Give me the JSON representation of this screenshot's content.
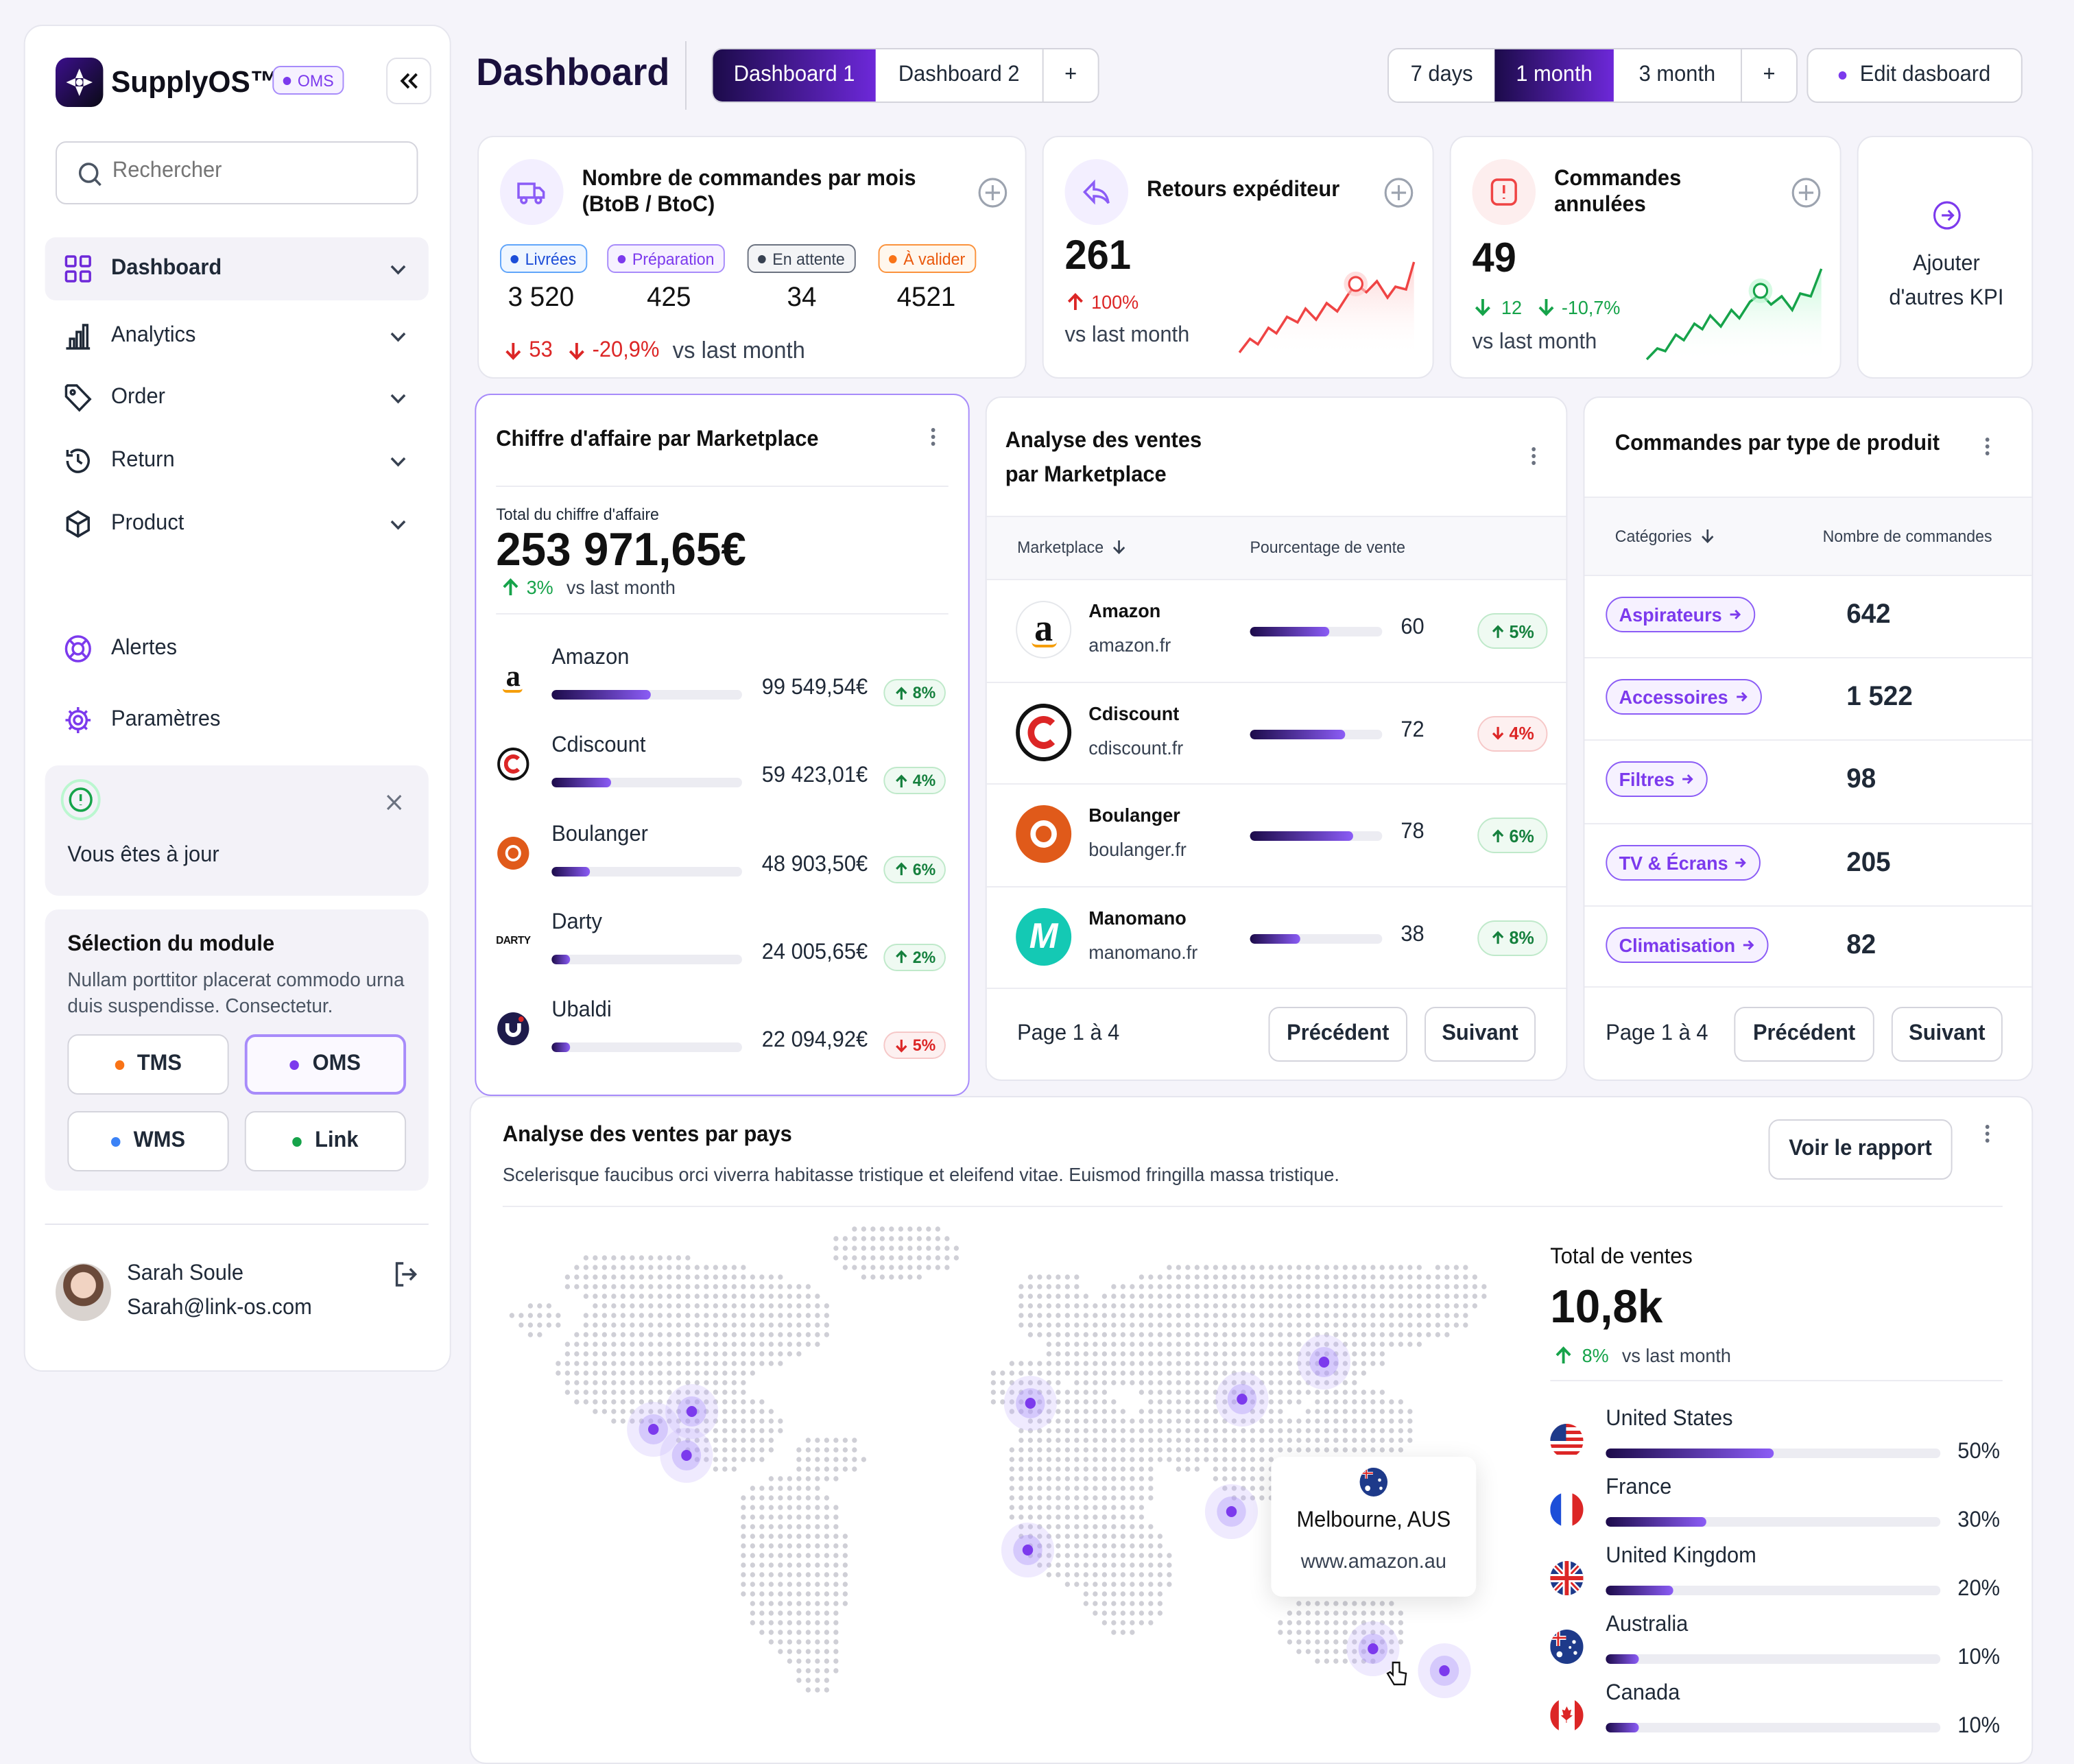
{
  "brand": {
    "name": "SupplyOS™",
    "badge": "OMS"
  },
  "sidebar": {
    "search_placeholder": "Rechercher",
    "items": [
      {
        "label": "Dashboard"
      },
      {
        "label": "Analytics"
      },
      {
        "label": "Order"
      },
      {
        "label": "Return"
      },
      {
        "label": "Product"
      }
    ],
    "alerts_label": "Alertes",
    "settings_label": "Paramètres",
    "notice": "Vous êtes à jour",
    "module": {
      "title": "Sélection du module",
      "desc": "Nullam porttitor placerat commodo urna duis suspendisse. Consectetur.",
      "options": [
        {
          "label": "TMS",
          "color": "#f97316"
        },
        {
          "label": "OMS",
          "color": "#7c3aed"
        },
        {
          "label": "WMS",
          "color": "#3b82f6"
        },
        {
          "label": "Link",
          "color": "#16a34a"
        }
      ]
    },
    "user": {
      "name": "Sarah Soule",
      "email": "Sarah@link-os.com"
    }
  },
  "header": {
    "title": "Dashboard",
    "tabs": [
      "Dashboard 1",
      "Dashboard 2",
      "+"
    ],
    "periods": [
      "7 days",
      "1 month",
      "3 month",
      "+"
    ],
    "edit_label": "Edit dasboard"
  },
  "kpi_orders": {
    "title": "Nombre de commandes par mois (BtoB / BtoC)",
    "statuses": [
      {
        "label": "Livrées",
        "value": "3 520",
        "color": "#2563eb"
      },
      {
        "label": "Préparation",
        "value": "425",
        "color": "#8b5cf6"
      },
      {
        "label": "En attente",
        "value": "34",
        "color": "#4b5563"
      },
      {
        "label": "À valider",
        "value": "4521",
        "color": "#f97316"
      }
    ],
    "delta_abs": "53",
    "delta_pct": "-20,9%",
    "vs": "vs last month"
  },
  "kpi_returns": {
    "title": "Retours expéditeur",
    "value": "261",
    "delta": "100%",
    "vs": "vs last month"
  },
  "kpi_cancel": {
    "title": "Commandes annulées",
    "value": "49",
    "delta_abs": "12",
    "delta_pct": "-10,7%",
    "vs": "vs last month"
  },
  "kpi_add": {
    "label": "Ajouter d'autres KPI"
  },
  "revenue": {
    "title": "Chiffre d'affaire par Marketplace",
    "total_label": "Total du chiffre d'affaire",
    "total": "253 971,65€",
    "delta": "3%",
    "vs": "vs last month",
    "rows": [
      {
        "name": "Amazon",
        "amount": "99 549,54€",
        "pct": "8%",
        "dir": "up",
        "fill": 0.52
      },
      {
        "name": "Cdiscount",
        "amount": "59 423,01€",
        "pct": "4%",
        "dir": "up",
        "fill": 0.31
      },
      {
        "name": "Boulanger",
        "amount": "48 903,50€",
        "pct": "6%",
        "dir": "up",
        "fill": 0.2
      },
      {
        "name": "Darty",
        "amount": "24 005,65€",
        "pct": "2%",
        "dir": "up",
        "fill": 0.1
      },
      {
        "name": "Ubaldi",
        "amount": "22 094,92€",
        "pct": "5%",
        "dir": "down",
        "fill": 0.1
      }
    ]
  },
  "sales_mp": {
    "title": "Analyse des ventes par Marketplace",
    "col1": "Marketplace",
    "col2": "Pourcentage de vente",
    "rows": [
      {
        "name": "Amazon",
        "domain": "amazon.fr",
        "value": 60,
        "pct": "5%",
        "dir": "up"
      },
      {
        "name": "Cdiscount",
        "domain": "cdiscount.fr",
        "value": 72,
        "pct": "4%",
        "dir": "down"
      },
      {
        "name": "Boulanger",
        "domain": "boulanger.fr",
        "value": 78,
        "pct": "6%",
        "dir": "up"
      },
      {
        "name": "Manomano",
        "domain": "manomano.fr",
        "value": 38,
        "pct": "8%",
        "dir": "up"
      }
    ],
    "page": "Page 1 à 4",
    "prev": "Précédent",
    "next": "Suivant"
  },
  "orders_type": {
    "title": "Commandes par type de produit",
    "col1": "Catégories",
    "col2": "Nombre de commandes",
    "rows": [
      {
        "cat": "Aspirateurs",
        "count": "642"
      },
      {
        "cat": "Accessoires",
        "count": "1 522"
      },
      {
        "cat": "Filtres",
        "count": "98"
      },
      {
        "cat": "TV & Écrans",
        "count": "205"
      },
      {
        "cat": "Climatisation",
        "count": "82"
      }
    ],
    "page": "Page 1 à 4",
    "prev": "Précédent",
    "next": "Suivant"
  },
  "countries": {
    "title": "Analyse des ventes par pays",
    "desc": "Scelerisque faucibus orci viverra habitasse tristique et eleifend vitae. Euismod fringilla massa tristique.",
    "report": "Voir le rapport",
    "tooltip": {
      "city": "Melbourne, AUS",
      "site": "www.amazon.au"
    },
    "total_label": "Total de ventes",
    "total": "10,8k",
    "delta": "8%",
    "vs": "vs last month",
    "rows": [
      {
        "name": "United States",
        "value": 50
      },
      {
        "name": "France",
        "value": 30
      },
      {
        "name": "United Kingdom",
        "value": 20
      },
      {
        "name": "Australia",
        "value": 10
      },
      {
        "name": "Canada",
        "value": 10
      }
    ]
  }
}
